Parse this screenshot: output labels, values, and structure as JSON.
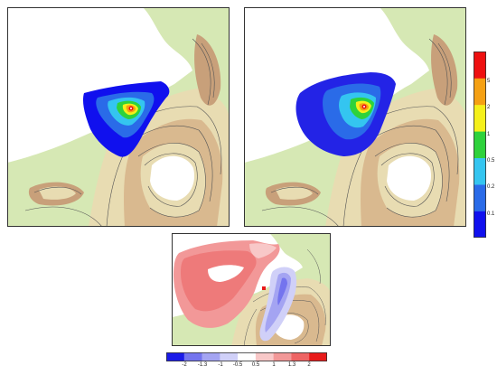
{
  "figure": {
    "panels": [
      {
        "id": "panel-left",
        "kind": "concentration-map"
      },
      {
        "id": "panel-right",
        "kind": "concentration-map"
      },
      {
        "id": "panel-difference",
        "kind": "difference-map"
      }
    ],
    "vertical_colorbar": {
      "placement": "right",
      "labels": [
        "0.1",
        "0.2",
        "0.5",
        "1",
        "2",
        "5"
      ],
      "colors": [
        "#1010ee",
        "#2a6be8",
        "#34c5f0",
        "#2ed23b",
        "#f5f01a",
        "#f5a012",
        "#ee1010"
      ]
    },
    "horizontal_colorbar": {
      "placement": "bottom",
      "labels": [
        "-2",
        "-1.3",
        "-1",
        "-0.5",
        "0.5",
        "1",
        "1.3",
        "2"
      ],
      "colors": [
        "#1a1ae8",
        "#7474ee",
        "#a4a4f2",
        "#d0d0f8",
        "#ffffff",
        "#f8c8c8",
        "#f29898",
        "#ee6464",
        "#e81a1a"
      ]
    },
    "terrain_colors": {
      "low": "#d6e8b4",
      "mid": "#e8dcb2",
      "high": "#c8a07a",
      "peak": "#ffffff",
      "contour": "#555555"
    }
  }
}
